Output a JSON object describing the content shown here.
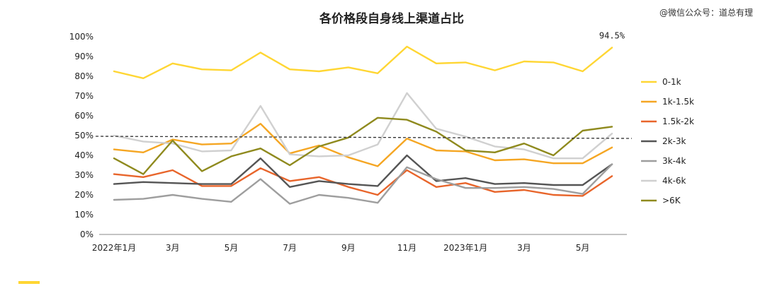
{
  "watermark": "@微信公众号：道总有理",
  "chart_data": {
    "type": "line",
    "title": "各价格段自身线上渠道占比",
    "xlabel": "",
    "ylabel": "",
    "ylim": [
      0,
      100
    ],
    "y_ticks": [
      "0%",
      "10%",
      "20%",
      "30%",
      "40%",
      "50%",
      "60%",
      "70%",
      "80%",
      "90%",
      "100%"
    ],
    "x_tick_labels": [
      {
        "index": 0,
        "label": "2022年1月"
      },
      {
        "index": 2,
        "label": "3月"
      },
      {
        "index": 4,
        "label": "5月"
      },
      {
        "index": 6,
        "label": "7月"
      },
      {
        "index": 8,
        "label": "9月"
      },
      {
        "index": 10,
        "label": "11月"
      },
      {
        "index": 12,
        "label": "2023年1月"
      },
      {
        "index": 14,
        "label": "3月"
      },
      {
        "index": 16,
        "label": "5月"
      }
    ],
    "x_count": 18,
    "reference_line": {
      "value": 50,
      "style": "dashed",
      "color": "#333333"
    },
    "annotation": {
      "text": "94.5%",
      "series": "0-1k",
      "index": 17
    },
    "legend_position": "right",
    "series": [
      {
        "name": "0-1k",
        "color": "#FFD633",
        "values": [
          82.5,
          79,
          86.5,
          83.5,
          83,
          92,
          83.5,
          82.5,
          84.5,
          81.5,
          95,
          86.5,
          87,
          83,
          87.5,
          87,
          82.5,
          94.5
        ]
      },
      {
        "name": "1k-1.5k",
        "color": "#F5A623",
        "values": [
          43,
          41.5,
          48,
          45.5,
          46,
          56,
          41,
          45,
          39,
          34.5,
          48.5,
          42.5,
          42,
          37.5,
          38,
          36,
          36,
          44
        ]
      },
      {
        "name": "1.5k-2k",
        "color": "#E8652B",
        "values": [
          30.5,
          29,
          32.5,
          24.5,
          24.5,
          33.5,
          27,
          29,
          24,
          20,
          32.5,
          24,
          26,
          21.5,
          22.5,
          20,
          19.5,
          29.5
        ]
      },
      {
        "name": "2k-3k",
        "color": "#555555",
        "values": [
          25.5,
          26.5,
          26,
          25.5,
          25.5,
          38.5,
          24,
          27,
          25.5,
          24.5,
          40,
          27,
          28.5,
          25.5,
          26,
          25,
          25,
          35.5
        ]
      },
      {
        "name": "3k-4k",
        "color": "#9E9E9E",
        "values": [
          17.5,
          18,
          20,
          18,
          16.5,
          28,
          15.5,
          20,
          18.5,
          16,
          34,
          28,
          23.5,
          23.5,
          24,
          23,
          20.5,
          35.5
        ]
      },
      {
        "name": "4k-6k",
        "color": "#D0D0D0",
        "values": [
          50,
          47,
          46,
          42,
          42.5,
          65,
          40.5,
          39.5,
          40,
          45.5,
          71.5,
          53.5,
          49.5,
          44.5,
          43,
          38.5,
          38.5,
          51
        ]
      },
      {
        "name": ">6K",
        "color": "#8F8A1E",
        "values": [
          38.5,
          30.5,
          47.5,
          32,
          39.5,
          43.5,
          35,
          44.5,
          49,
          59,
          58,
          52,
          42.5,
          41.5,
          46,
          40,
          52.5,
          54.5
        ]
      }
    ]
  }
}
